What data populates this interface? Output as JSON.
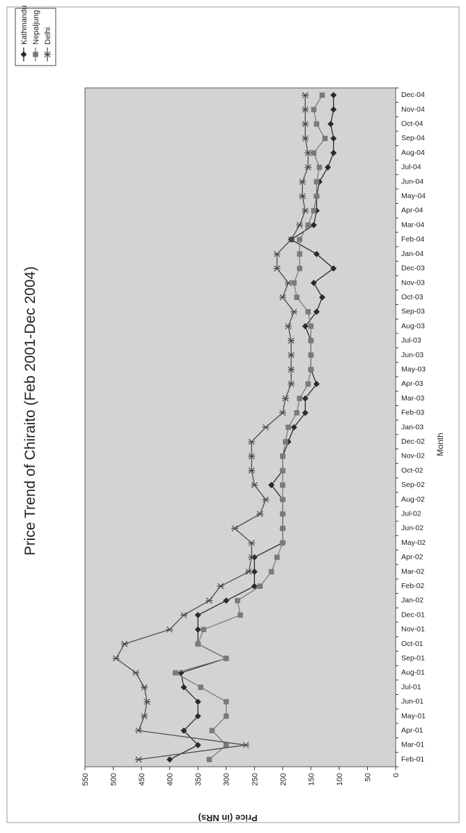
{
  "chart_data": {
    "type": "line",
    "title": "Price Trend of Chiraito (Feb 2001-Dec 2004)",
    "xlabel": "Month",
    "ylabel": "Price (in NRs)",
    "ylim": [
      0,
      550
    ],
    "yticks": [
      0,
      50,
      100,
      150,
      200,
      250,
      300,
      350,
      400,
      450,
      500,
      550
    ],
    "grid": false,
    "legend_position": "top-right",
    "background_color": "#d3d3d3",
    "categories": [
      "Feb-01",
      "Mar-01",
      "Apr-01",
      "May-01",
      "Jun-01",
      "Jul-01",
      "Aug-01",
      "Sep-01",
      "Oct-01",
      "Nov-01",
      "Dec-01",
      "Jan-02",
      "Feb-02",
      "Mar-02",
      "Apr-02",
      "May-02",
      "Jun-02",
      "Jul-02",
      "Aug-02",
      "Sep-02",
      "Oct-02",
      "Nov-02",
      "Dec-02",
      "Jan-03",
      "Feb-03",
      "Mar-03",
      "Apr-03",
      "May-03",
      "Jun-03",
      "Jul-03",
      "Aug-03",
      "Sep-03",
      "Oct-03",
      "Nov-03",
      "Dec-03",
      "Jan-04",
      "Feb-04",
      "Mar-04",
      "Apr-04",
      "May-04",
      "Jun-04",
      "Jul-04",
      "Aug-04",
      "Sep-04",
      "Oct-04",
      "Nov-04",
      "Dec-04"
    ],
    "series": [
      {
        "name": "Kathmandu",
        "marker": "diamond",
        "color": "#2a2a2a",
        "values": [
          400,
          350,
          375,
          350,
          350,
          375,
          380,
          300,
          350,
          350,
          350,
          300,
          250,
          250,
          250,
          200,
          200,
          200,
          200,
          220,
          200,
          200,
          190,
          180,
          160,
          160,
          140,
          150,
          150,
          150,
          160,
          140,
          130,
          145,
          110,
          140,
          185,
          145,
          140,
          140,
          135,
          120,
          110,
          110,
          115,
          110,
          110
        ]
      },
      {
        "name": "Nepaljung",
        "marker": "square",
        "color": "#7a7a7a",
        "values": [
          330,
          300,
          325,
          300,
          300,
          345,
          390,
          300,
          350,
          340,
          275,
          280,
          240,
          220,
          210,
          200,
          200,
          200,
          200,
          200,
          200,
          200,
          195,
          190,
          175,
          170,
          155,
          150,
          150,
          150,
          150,
          155,
          175,
          180,
          170,
          170,
          170,
          155,
          145,
          140,
          140,
          135,
          145,
          125,
          140,
          145,
          130
        ]
      },
      {
        "name": "Delhi",
        "marker": "asterisk",
        "color": "#4a4a4a",
        "values": [
          455,
          265,
          455,
          445,
          440,
          445,
          460,
          495,
          480,
          400,
          375,
          330,
          310,
          260,
          255,
          255,
          285,
          240,
          230,
          250,
          255,
          255,
          255,
          230,
          200,
          195,
          185,
          185,
          185,
          185,
          190,
          180,
          200,
          190,
          210,
          210,
          185,
          170,
          160,
          165,
          165,
          155,
          155,
          160,
          160,
          160,
          160
        ]
      }
    ]
  }
}
